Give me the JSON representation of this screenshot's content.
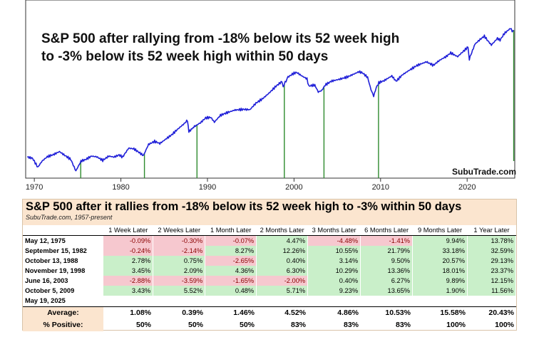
{
  "chart_data": {
    "type": "line",
    "title_lines": [
      "S&P 500 after rallying from -18% below its 52 week high",
      "to -3% below its 52 week high within 50 days"
    ],
    "x_ticks": [
      "1970",
      "1980",
      "1990",
      "2000",
      "2010",
      "2020"
    ],
    "xlim": [
      1969,
      2025.5
    ],
    "log_scale": true,
    "series": [
      {
        "color": "#1f1fd8",
        "points": [
          [
            1969.2,
            100
          ],
          [
            1969.8,
            96
          ],
          [
            1970.4,
            72
          ],
          [
            1970.9,
            88
          ],
          [
            1971.5,
            101
          ],
          [
            1972.2,
            108
          ],
          [
            1972.9,
            119
          ],
          [
            1973.5,
            106
          ],
          [
            1974.2,
            93
          ],
          [
            1974.8,
            64
          ],
          [
            1975.4,
            88
          ],
          [
            1975.9,
            92
          ],
          [
            1976.6,
            103
          ],
          [
            1977.2,
            101
          ],
          [
            1977.9,
            90
          ],
          [
            1978.6,
            103
          ],
          [
            1979.2,
            100
          ],
          [
            1979.8,
            107
          ],
          [
            1980.2,
            100
          ],
          [
            1980.9,
            133
          ],
          [
            1981.5,
            130
          ],
          [
            1982.1,
            116
          ],
          [
            1982.6,
            105
          ],
          [
            1983.2,
            150
          ],
          [
            1983.9,
            165
          ],
          [
            1984.5,
            154
          ],
          [
            1985.2,
            178
          ],
          [
            1985.9,
            205
          ],
          [
            1986.5,
            240
          ],
          [
            1987.3,
            290
          ],
          [
            1987.7,
            325
          ],
          [
            1987.85,
            225
          ],
          [
            1988.5,
            266
          ],
          [
            1989.2,
            300
          ],
          [
            1989.8,
            350
          ],
          [
            1990.4,
            355
          ],
          [
            1990.8,
            305
          ],
          [
            1991.5,
            380
          ],
          [
            1992.3,
            415
          ],
          [
            1993.2,
            450
          ],
          [
            1994.2,
            460
          ],
          [
            1994.9,
            455
          ],
          [
            1995.6,
            560
          ],
          [
            1996.4,
            650
          ],
          [
            1997.2,
            790
          ],
          [
            1997.9,
            960
          ],
          [
            1998.6,
            1120
          ],
          [
            1998.75,
            960
          ],
          [
            1999.3,
            1290
          ],
          [
            1999.9,
            1440
          ],
          [
            2000.3,
            1500
          ],
          [
            2000.9,
            1340
          ],
          [
            2001.5,
            1220
          ],
          [
            2001.7,
            970
          ],
          [
            2002.4,
            1000
          ],
          [
            2002.8,
            800
          ],
          [
            2003.2,
            840
          ],
          [
            2003.6,
            1000
          ],
          [
            2004.3,
            1130
          ],
          [
            2005.2,
            1200
          ],
          [
            2006.2,
            1300
          ],
          [
            2007.5,
            1530
          ],
          [
            2007.9,
            1480
          ],
          [
            2008.5,
            1280
          ],
          [
            2008.9,
            860
          ],
          [
            2009.2,
            700
          ],
          [
            2009.5,
            920
          ],
          [
            2009.8,
            1080
          ],
          [
            2010.4,
            1150
          ],
          [
            2011.3,
            1340
          ],
          [
            2011.8,
            1130
          ],
          [
            2012.5,
            1380
          ],
          [
            2013.3,
            1600
          ],
          [
            2014.2,
            1870
          ],
          [
            2015.3,
            2100
          ],
          [
            2016.1,
            1880
          ],
          [
            2016.8,
            2200
          ],
          [
            2017.6,
            2500
          ],
          [
            2018.1,
            2800
          ],
          [
            2018.9,
            2480
          ],
          [
            2019.7,
            3050
          ],
          [
            2020.1,
            3380
          ],
          [
            2020.25,
            2300
          ],
          [
            2020.9,
            3700
          ],
          [
            2021.5,
            4300
          ],
          [
            2021.99,
            4790
          ],
          [
            2022.4,
            4100
          ],
          [
            2022.8,
            3600
          ],
          [
            2023.5,
            4450
          ],
          [
            2023.8,
            4200
          ],
          [
            2024.3,
            5200
          ],
          [
            2024.9,
            6000
          ],
          [
            2025.1,
            6100
          ],
          [
            2025.2,
            5400
          ],
          [
            2025.33,
            5800
          ]
        ]
      }
    ],
    "event_markers": [
      1975.36,
      1982.72,
      1988.79,
      1998.88,
      2003.46,
      2009.76,
      2025.38
    ],
    "watermark": "SubuTrade.com"
  },
  "table": {
    "title": "S&P 500 after it rallies from -18% below its 52 week high to -3% within 50 days",
    "subtitle": "SubuTrade.com, 1957-present",
    "columns": [
      "1 Week Later",
      "2 Weeks Later",
      "1 Month Later",
      "2 Months Later",
      "3 Months Later",
      "6 Months Later",
      "9 Months Later",
      "1 Year Later"
    ],
    "rows": [
      {
        "date": "May 12, 1975",
        "values": [
          "-0.09%",
          "-0.30%",
          "-0.07%",
          "4.47%",
          "-4.48%",
          "-1.41%",
          "9.94%",
          "13.78%"
        ]
      },
      {
        "date": "September 15, 1982",
        "values": [
          "-0.24%",
          "-2.14%",
          "8.27%",
          "12.26%",
          "10.55%",
          "21.79%",
          "33.18%",
          "32.59%"
        ]
      },
      {
        "date": "October 13, 1988",
        "values": [
          "2.78%",
          "0.75%",
          "-2.65%",
          "0.40%",
          "3.14%",
          "9.50%",
          "20.57%",
          "29.13%"
        ]
      },
      {
        "date": "November 19, 1998",
        "values": [
          "3.45%",
          "2.09%",
          "4.36%",
          "6.30%",
          "10.29%",
          "13.36%",
          "18.01%",
          "23.37%"
        ]
      },
      {
        "date": "June 16, 2003",
        "values": [
          "-2.88%",
          "-3.59%",
          "-1.65%",
          "-2.00%",
          "0.40%",
          "6.27%",
          "9.89%",
          "12.15%"
        ]
      },
      {
        "date": "October 5, 2009",
        "values": [
          "3.43%",
          "5.52%",
          "0.48%",
          "5.71%",
          "9.23%",
          "13.65%",
          "1.90%",
          "11.56%"
        ]
      },
      {
        "date": "May 19, 2025",
        "values": [
          "",
          "",
          "",
          "",
          "",
          "",
          "",
          ""
        ]
      }
    ],
    "average": {
      "label": "Average:",
      "values": [
        "1.08%",
        "0.39%",
        "1.46%",
        "4.52%",
        "4.86%",
        "10.53%",
        "15.58%",
        "20.43%"
      ]
    },
    "positive": {
      "label": "% Positive:",
      "values": [
        "50%",
        "50%",
        "50%",
        "83%",
        "83%",
        "83%",
        "100%",
        "100%"
      ]
    }
  }
}
